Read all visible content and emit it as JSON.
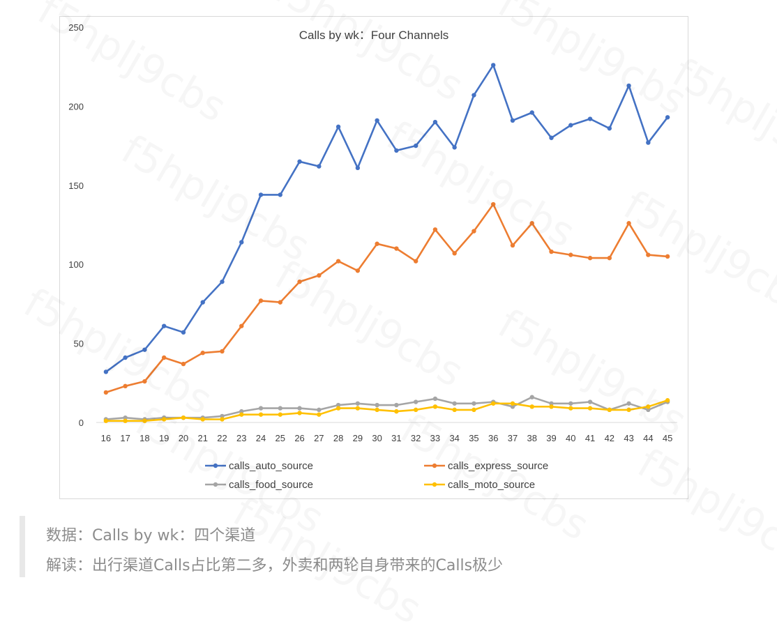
{
  "chart_data": {
    "type": "line",
    "title": "Calls by wk：Four Channels",
    "xlabel": "",
    "ylabel": "",
    "x": [
      16,
      17,
      18,
      19,
      20,
      21,
      22,
      23,
      24,
      25,
      26,
      27,
      28,
      29,
      30,
      31,
      32,
      33,
      34,
      35,
      36,
      37,
      38,
      39,
      40,
      41,
      42,
      43,
      44,
      45
    ],
    "ylim": [
      0,
      250
    ],
    "yticks": [
      0,
      50,
      100,
      150,
      200,
      250
    ],
    "grid": false,
    "legend_position": "bottom",
    "series": [
      {
        "name": "calls_auto_source",
        "color": "#4472c4",
        "values": [
          32,
          41,
          46,
          61,
          57,
          76,
          89,
          114,
          144,
          144,
          165,
          162,
          187,
          161,
          191,
          172,
          175,
          190,
          174,
          207,
          226,
          191,
          196,
          180,
          188,
          192,
          186,
          213,
          177,
          193
        ]
      },
      {
        "name": "calls_express_source",
        "color": "#ed7d31",
        "values": [
          19,
          23,
          26,
          41,
          37,
          44,
          45,
          61,
          77,
          76,
          89,
          93,
          102,
          96,
          113,
          110,
          102,
          122,
          107,
          121,
          138,
          112,
          126,
          108,
          106,
          104,
          104,
          126,
          106,
          105
        ]
      },
      {
        "name": "calls_food_source",
        "color": "#a5a5a5",
        "values": [
          2,
          3,
          2,
          3,
          3,
          3,
          4,
          7,
          9,
          9,
          9,
          8,
          11,
          12,
          11,
          11,
          13,
          15,
          12,
          12,
          13,
          10,
          16,
          12,
          12,
          13,
          8,
          12,
          8,
          13
        ]
      },
      {
        "name": "calls_moto_source",
        "color": "#ffc000",
        "values": [
          1,
          1,
          1,
          2,
          3,
          2,
          2,
          5,
          5,
          5,
          6,
          5,
          9,
          9,
          8,
          7,
          8,
          10,
          8,
          8,
          12,
          12,
          10,
          10,
          9,
          9,
          8,
          8,
          10,
          14
        ]
      }
    ]
  },
  "captions": {
    "line1": "数据：Calls by wk：四个渠道",
    "line2": "解读：出行渠道Calls占比第二多，外卖和两轮自身带来的Calls极少"
  },
  "watermark": {
    "text": "f5hplj9cbs",
    "color": "#000000"
  }
}
